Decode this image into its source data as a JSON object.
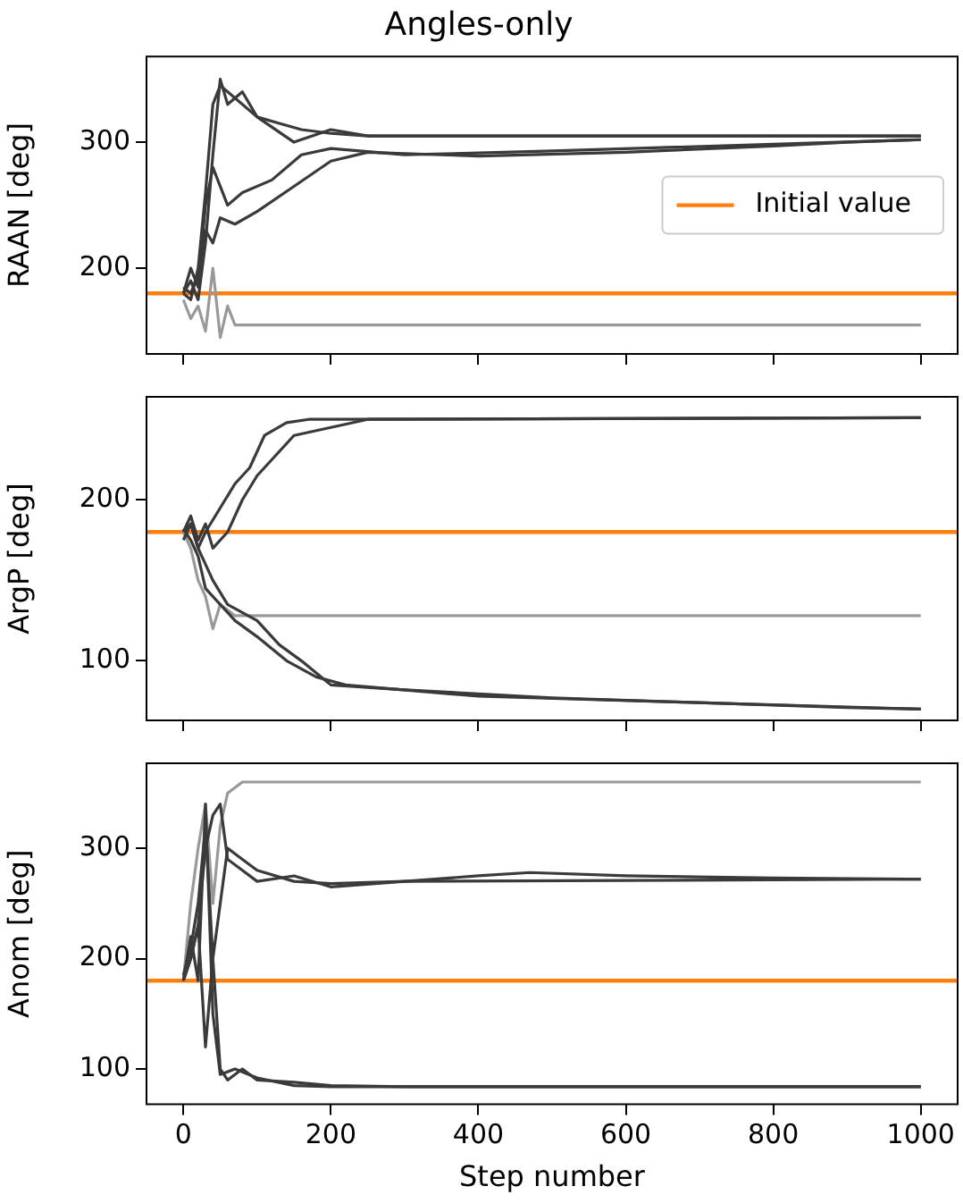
{
  "chart_data": [
    {
      "type": "line",
      "title": "Angles-only",
      "ylabel": "RAAN [deg]",
      "xlim": [
        -50,
        1050
      ],
      "xticks": [
        0,
        200,
        400,
        600,
        800,
        1000
      ],
      "ylim": [
        132,
        368
      ],
      "yticks": [
        200,
        300
      ],
      "tick_labels": "y",
      "grid": false,
      "legend": "right",
      "marker": "none",
      "line_style": "solid",
      "ref_lines": [
        {
          "axis": "y",
          "value": 180,
          "label": "Initial value",
          "color": "#ff7f0e"
        }
      ],
      "series": [
        {
          "color": "#3a3a3a",
          "x": [
            0,
            10,
            20,
            30,
            40,
            50,
            60,
            80,
            100,
            130,
            160,
            200,
            250,
            1000
          ],
          "values": [
            180,
            175,
            200,
            260,
            330,
            345,
            340,
            330,
            320,
            315,
            310,
            307,
            305,
            305
          ]
        },
        {
          "color": "#3a3a3a",
          "x": [
            0,
            10,
            20,
            30,
            40,
            50,
            70,
            100,
            150,
            200,
            250,
            300,
            400,
            600,
            800,
            900,
            1000
          ],
          "values": [
            185,
            180,
            195,
            230,
            220,
            240,
            235,
            245,
            265,
            285,
            292,
            291,
            289,
            292,
            297,
            300,
            302
          ]
        },
        {
          "color": "#3a3a3a",
          "x": [
            0,
            10,
            20,
            30,
            40,
            50,
            60,
            80,
            100,
            150,
            200,
            250,
            1000
          ],
          "values": [
            180,
            190,
            175,
            220,
            290,
            350,
            330,
            340,
            320,
            300,
            310,
            305,
            305
          ]
        },
        {
          "color": "#999999",
          "x": [
            0,
            10,
            20,
            30,
            40,
            50,
            60,
            70,
            1000
          ],
          "values": [
            175,
            160,
            170,
            150,
            200,
            145,
            170,
            155,
            155
          ]
        },
        {
          "color": "#3a3a3a",
          "x": [
            0,
            10,
            20,
            30,
            40,
            60,
            80,
            120,
            160,
            200,
            300,
            500,
            1000
          ],
          "values": [
            180,
            200,
            185,
            250,
            280,
            250,
            260,
            270,
            290,
            295,
            290,
            293,
            302
          ]
        }
      ]
    },
    {
      "type": "line",
      "ylabel": "ArgP [deg]",
      "xlim": [
        -50,
        1050
      ],
      "xticks": [
        0,
        200,
        400,
        600,
        800,
        1000
      ],
      "ylim": [
        63,
        264
      ],
      "yticks": [
        100,
        200
      ],
      "tick_labels": "y",
      "grid": false,
      "marker": "none",
      "line_style": "solid",
      "ref_lines": [
        {
          "axis": "y",
          "value": 180,
          "color": "#ff7f0e"
        }
      ],
      "series": [
        {
          "color": "#3a3a3a",
          "x": [
            0,
            10,
            20,
            30,
            40,
            60,
            80,
            100,
            120,
            150,
            200,
            250,
            1000
          ],
          "values": [
            180,
            190,
            175,
            185,
            170,
            180,
            200,
            215,
            225,
            240,
            245,
            250,
            251
          ]
        },
        {
          "color": "#3a3a3a",
          "x": [
            0,
            10,
            20,
            30,
            50,
            70,
            90,
            110,
            140,
            170,
            210,
            1000
          ],
          "values": [
            175,
            185,
            170,
            180,
            195,
            210,
            220,
            240,
            248,
            250,
            250,
            251
          ]
        },
        {
          "color": "#3a3a3a",
          "x": [
            0,
            10,
            20,
            30,
            40,
            60,
            80,
            100,
            130,
            160,
            200,
            300,
            500,
            700,
            900,
            1000
          ],
          "values": [
            180,
            185,
            170,
            160,
            150,
            135,
            130,
            125,
            110,
            100,
            85,
            82,
            77,
            74,
            71,
            70
          ]
        },
        {
          "color": "#3a3a3a",
          "x": [
            0,
            10,
            20,
            30,
            50,
            70,
            100,
            140,
            180,
            220,
            400,
            1000
          ],
          "values": [
            182,
            175,
            165,
            145,
            135,
            125,
            115,
            100,
            90,
            85,
            78,
            70
          ]
        },
        {
          "color": "#999999",
          "x": [
            0,
            10,
            20,
            30,
            40,
            50,
            70,
            100,
            1000
          ],
          "values": [
            180,
            170,
            150,
            140,
            120,
            135,
            128,
            128,
            128
          ]
        }
      ]
    },
    {
      "type": "line",
      "ylabel": "Anom [deg]",
      "xlabel": "Step number",
      "xlim": [
        -50,
        1050
      ],
      "xticks": [
        0,
        200,
        400,
        600,
        800,
        1000
      ],
      "ylim": [
        68,
        377
      ],
      "yticks": [
        100,
        200,
        300
      ],
      "grid": false,
      "marker": "none",
      "line_style": "solid",
      "ref_lines": [
        {
          "axis": "y",
          "value": 180,
          "color": "#ff7f0e"
        }
      ],
      "series": [
        {
          "color": "#3a3a3a",
          "x": [
            0,
            10,
            20,
            30,
            40,
            50,
            60,
            80,
            100,
            150,
            200,
            300,
            400,
            470,
            600,
            800,
            1000
          ],
          "values": [
            180,
            200,
            230,
            300,
            330,
            340,
            290,
            280,
            270,
            275,
            265,
            270,
            275,
            278,
            275,
            273,
            272
          ]
        },
        {
          "color": "#3a3a3a",
          "x": [
            0,
            10,
            20,
            30,
            40,
            50,
            60,
            80,
            100,
            150,
            200,
            300,
            1000
          ],
          "values": [
            185,
            210,
            250,
            320,
            200,
            250,
            300,
            290,
            280,
            270,
            268,
            270,
            272
          ]
        },
        {
          "color": "#3a3a3a",
          "x": [
            0,
            10,
            20,
            30,
            40,
            50,
            60,
            80,
            100,
            150,
            200,
            300,
            1000
          ],
          "values": [
            180,
            200,
            230,
            120,
            200,
            100,
            90,
            100,
            90,
            88,
            85,
            84,
            84
          ]
        },
        {
          "color": "#3a3a3a",
          "x": [
            0,
            10,
            20,
            30,
            40,
            50,
            70,
            100,
            150,
            200,
            1000
          ],
          "values": [
            180,
            220,
            180,
            340,
            150,
            95,
            100,
            92,
            85,
            84,
            84
          ]
        },
        {
          "color": "#999999",
          "x": [
            0,
            10,
            20,
            30,
            40,
            50,
            60,
            80,
            1000
          ],
          "values": [
            180,
            250,
            300,
            340,
            250,
            320,
            350,
            360,
            360
          ]
        }
      ]
    }
  ]
}
